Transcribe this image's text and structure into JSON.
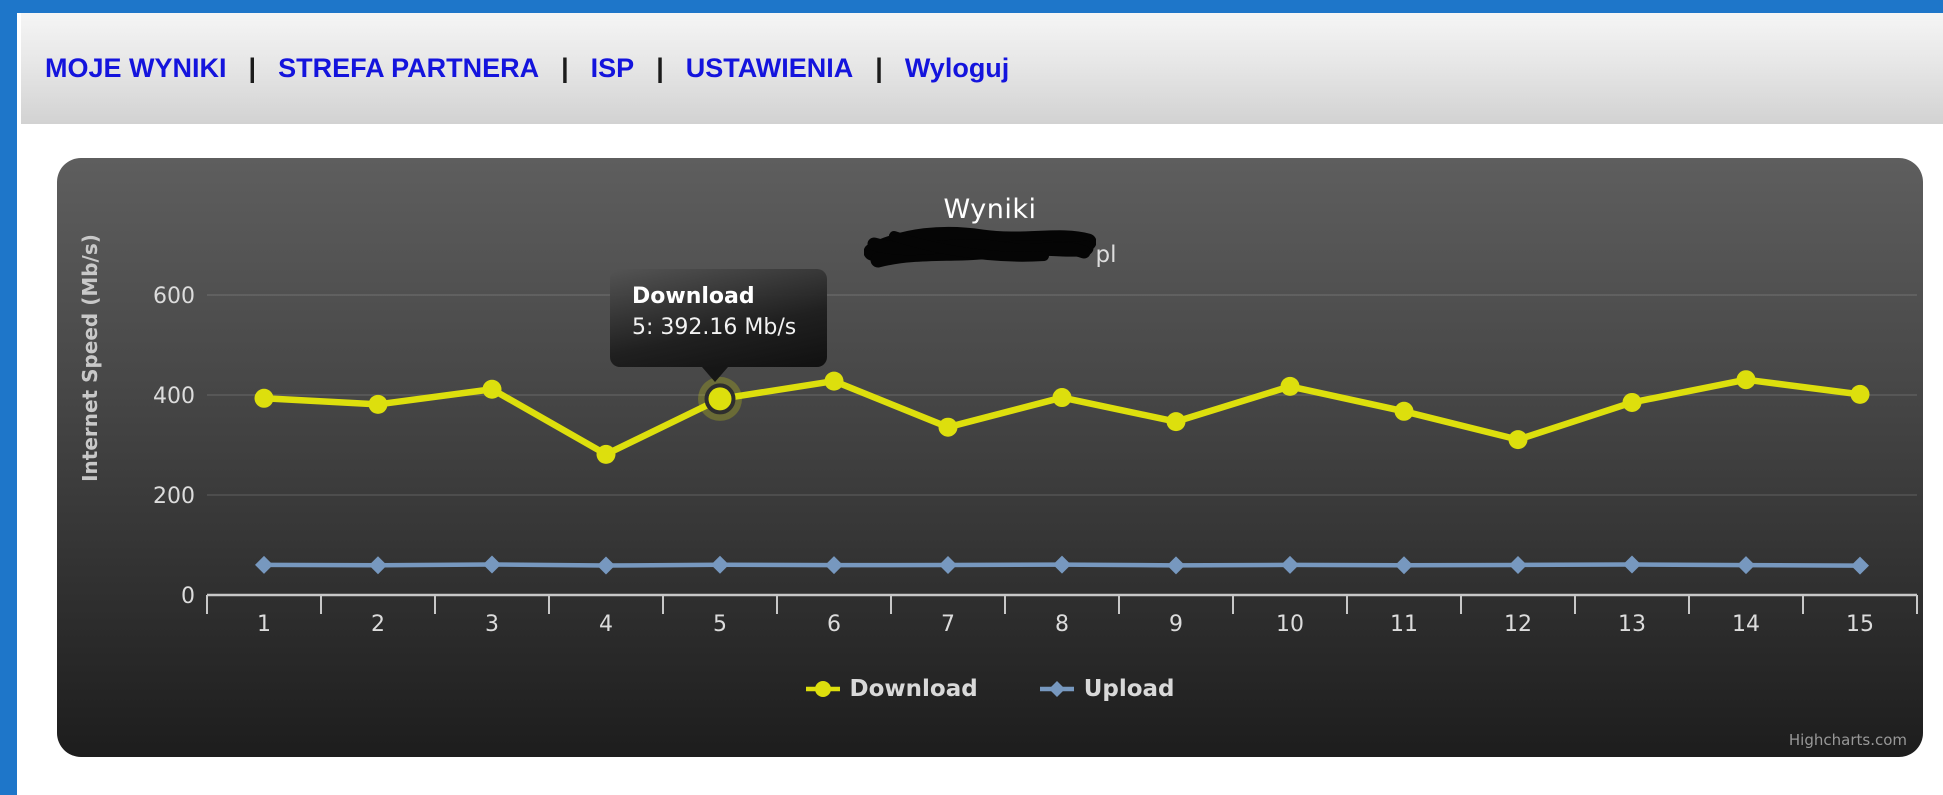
{
  "nav": {
    "separator": "|",
    "items": [
      {
        "label": "MOJE WYNIKI"
      },
      {
        "label": "STREFA PARTNERA"
      },
      {
        "label": "ISP"
      },
      {
        "label": "USTAWIENIA"
      },
      {
        "label": "Wyloguj"
      }
    ]
  },
  "colors": {
    "accent_blue": "#1e76c9",
    "nav_link_blue": "#1414dd",
    "download_yellow": "#DDDF0D",
    "upload_blue": "#7798BF",
    "chart_bg_top": "#5e5e5e",
    "chart_bg_bottom": "#1d1d1d"
  },
  "chart": {
    "title": "Wyniki",
    "subtitle_redacted": true,
    "subtitle_suffix": "pl",
    "tooltip": {
      "series": "Download",
      "line": "5: 392.16 Mb/s"
    },
    "credits": "Highcharts.com"
  },
  "chart_data": {
    "type": "line",
    "title": "Wyniki",
    "xlabel": "",
    "ylabel": "Internet Speed (Mb/s)",
    "categories": [
      "1",
      "2",
      "3",
      "4",
      "5",
      "6",
      "7",
      "8",
      "9",
      "10",
      "11",
      "12",
      "13",
      "14",
      "15"
    ],
    "yticks": [
      0,
      200,
      400,
      600
    ],
    "ylim": [
      0,
      600
    ],
    "grid": true,
    "legend_position": "bottom",
    "series": [
      {
        "name": "Download",
        "color": "#DDDF0D",
        "marker": "circle",
        "values": [
          393.4,
          381.2,
          411.5,
          281.3,
          392.16,
          427.8,
          335.6,
          394.9,
          346.7,
          417.2,
          367.4,
          310.8,
          385.1,
          430.6,
          401.3
        ]
      },
      {
        "name": "Upload",
        "color": "#7798BF",
        "marker": "diamond",
        "values": [
          60.2,
          59.4,
          61.1,
          58.9,
          60.5,
          59.7,
          60.0,
          60.8,
          59.2,
          60.3,
          59.5,
          60.1,
          61.0,
          59.8,
          58.7
        ]
      }
    ],
    "highlight": {
      "series": "Download",
      "category": "5",
      "value": 392.16
    }
  }
}
